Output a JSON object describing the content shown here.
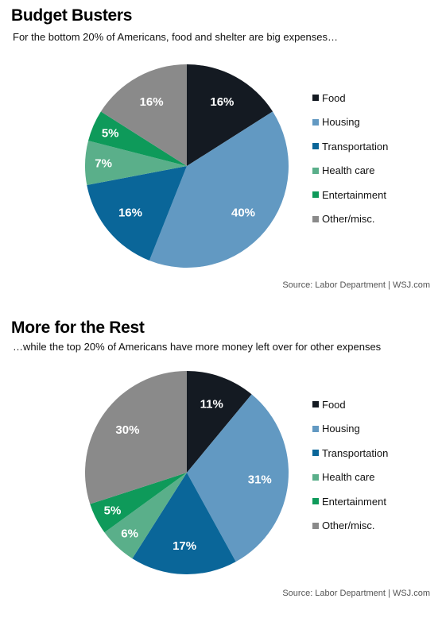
{
  "chart_data": [
    {
      "type": "pie",
      "title": "Budget Busters",
      "subtitle": "For the bottom 20% of Americans, food and shelter are big expenses…",
      "categories": [
        "Food",
        "Housing",
        "Transportation",
        "Health care",
        "Entertainment",
        "Other/misc."
      ],
      "values": [
        16,
        40,
        16,
        7,
        5,
        16
      ],
      "value_labels": [
        "16%",
        "40%",
        "16%",
        "7%",
        "5%",
        "16%"
      ],
      "colors": [
        "#141a22",
        "#6299c2",
        "#0a6699",
        "#5aaf8a",
        "#0e9a5a",
        "#8a8a8a"
      ],
      "legend_position": "right",
      "source": "Source: Labor Department | WSJ.com"
    },
    {
      "type": "pie",
      "title": "More for the Rest",
      "subtitle": "…while the top 20% of Americans have more money left over for other expenses",
      "categories": [
        "Food",
        "Housing",
        "Transportation",
        "Health care",
        "Entertainment",
        "Other/misc."
      ],
      "values": [
        11,
        31,
        17,
        6,
        5,
        30
      ],
      "value_labels": [
        "11%",
        "31%",
        "17%",
        "6%",
        "5%",
        "30%"
      ],
      "colors": [
        "#141a22",
        "#6299c2",
        "#0a6699",
        "#5aaf8a",
        "#0e9a5a",
        "#8a8a8a"
      ],
      "legend_position": "right",
      "source": "Source: Labor Department | WSJ.com"
    }
  ]
}
